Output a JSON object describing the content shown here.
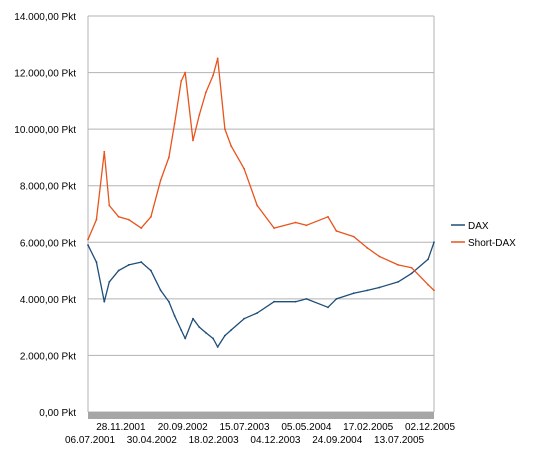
{
  "chart_data": {
    "type": "line",
    "title": "",
    "xlabel": "",
    "ylabel": "",
    "ylim": [
      0,
      14000
    ],
    "y_ticks": [
      {
        "value": 0,
        "label": "0,00 Pkt"
      },
      {
        "value": 2000,
        "label": "2.000,00 Pkt"
      },
      {
        "value": 4000,
        "label": "4.000,00 Pkt"
      },
      {
        "value": 6000,
        "label": "6.000,00 Pkt"
      },
      {
        "value": 8000,
        "label": "8.000,00 Pkt"
      },
      {
        "value": 10000,
        "label": "10.000,00 Pkt"
      },
      {
        "value": 12000,
        "label": "12.000,00 Pkt"
      },
      {
        "value": 14000,
        "label": "14.000,00 Pkt"
      }
    ],
    "x_range": [
      "2001-07-06",
      "2005-12-30"
    ],
    "x_ticks_top": [
      "28.11.2001",
      "20.09.2002",
      "15.07.2003",
      "05.05.2004",
      "17.02.2005",
      "02.12.2005"
    ],
    "x_ticks_bottom": [
      "06.07.2001",
      "30.04.2002",
      "18.02.2003",
      "04.12.2003",
      "24.09.2004",
      "13.07.2005"
    ],
    "grid": true,
    "legend_position": "right",
    "x": [
      "2001-07-06",
      "2001-08-15",
      "2001-09-21",
      "2001-10-15",
      "2001-11-28",
      "2002-01-15",
      "2002-03-15",
      "2002-04-30",
      "2002-06-15",
      "2002-07-24",
      "2002-08-20",
      "2002-09-20",
      "2002-10-09",
      "2002-11-15",
      "2002-12-15",
      "2003-01-15",
      "2003-02-18",
      "2003-03-12",
      "2003-04-15",
      "2003-05-15",
      "2003-07-15",
      "2003-09-15",
      "2003-12-04",
      "2004-03-15",
      "2004-05-05",
      "2004-08-15",
      "2004-09-24",
      "2004-12-15",
      "2005-02-17",
      "2005-04-15",
      "2005-07-13",
      "2005-09-15",
      "2005-12-02",
      "2005-12-30"
    ],
    "series": [
      {
        "name": "DAX",
        "color": "#1f4e79",
        "values": [
          5900,
          5300,
          3900,
          4600,
          5000,
          5200,
          5300,
          5000,
          4300,
          3900,
          3400,
          2900,
          2600,
          3300,
          3000,
          2800,
          2600,
          2300,
          2700,
          2900,
          3300,
          3500,
          3900,
          3900,
          4000,
          3700,
          4000,
          4200,
          4300,
          4400,
          4600,
          4900,
          5400,
          6000
        ]
      },
      {
        "name": "Short-DAX",
        "color": "#e8541c",
        "values": [
          6100,
          6800,
          9200,
          7300,
          6900,
          6800,
          6500,
          6900,
          8200,
          9000,
          10200,
          11700,
          12000,
          9600,
          10500,
          11300,
          11900,
          12500,
          10000,
          9400,
          8600,
          7300,
          6500,
          6700,
          6600,
          6900,
          6400,
          6200,
          5800,
          5500,
          5200,
          5100,
          4500,
          4300
        ]
      }
    ]
  }
}
